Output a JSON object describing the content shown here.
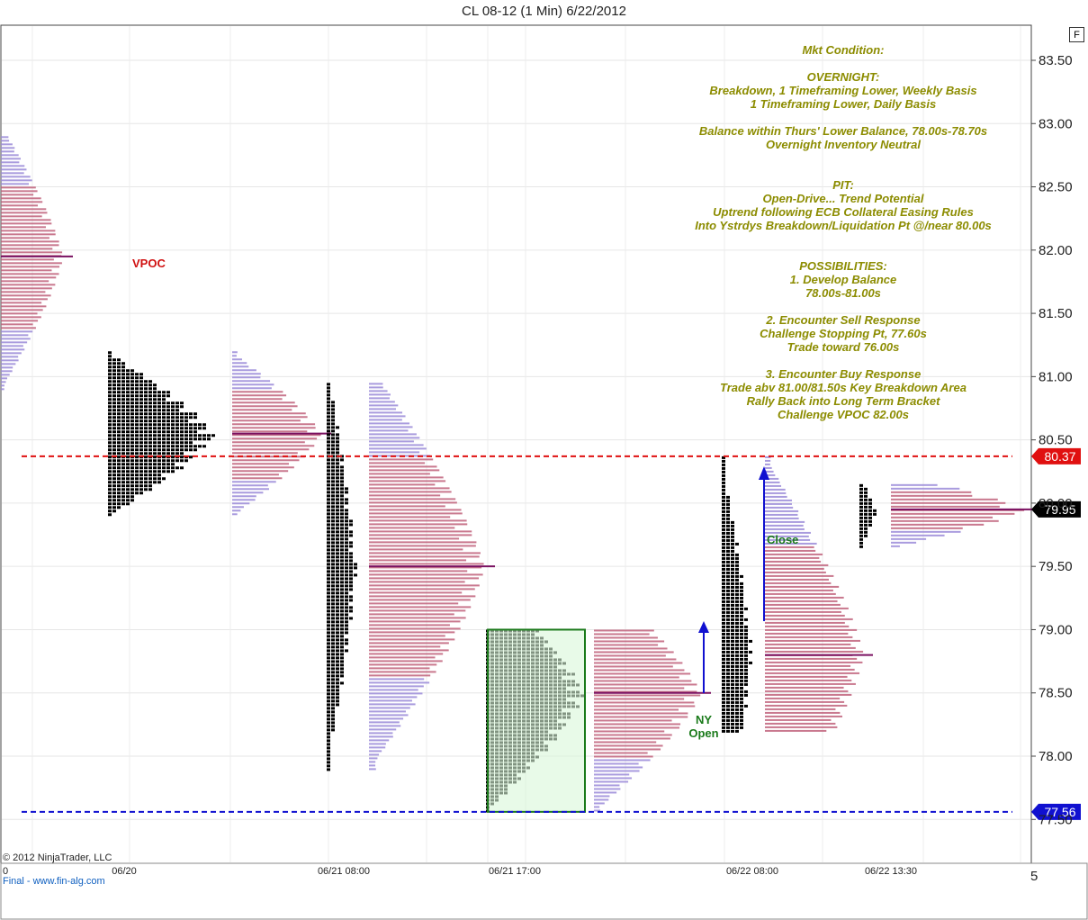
{
  "title": "CL 08-12 (1 Min)  6/22/2012",
  "toolbar": {
    "f_button_label": "F"
  },
  "copyright": "© 2012 NinjaTrader, LLC",
  "footer": {
    "zero_label": "0",
    "left_label": "Final - www.fin-alg.com",
    "right_label": "5"
  },
  "colors": {
    "black_profile": "#000000",
    "tpo_profile": "#c0607a",
    "tpo_profile_light": "#9a8ad8",
    "poc_line": "#7a1060",
    "red_line": "#e01010",
    "blue_line": "#1010d0",
    "annotation_text": "#8c8c00",
    "green_box": "#d9f7d9"
  },
  "annotations": {
    "vpoc": "VPOC",
    "close": "Close",
    "ny_open_1": "NY",
    "ny_open_2": "Open"
  },
  "market_condition_lines": [
    "Mkt Condition:",
    "",
    "OVERNIGHT:",
    "Breakdown, 1 Timeframing Lower, Weekly Basis",
    "1 Timeframing Lower, Daily Basis",
    "",
    "Balance within Thurs' Lower Balance, 78.00s-78.70s",
    "Overnight Inventory Neutral",
    "",
    "",
    "PIT:",
    "Open-Drive... Trend Potential",
    "Uptrend following ECB Collateral Easing Rules",
    "Into Ystrdys Breakdown/Liquidation Pt @/near 80.00s",
    "",
    "",
    "POSSIBILITIES:",
    "1. Develop Balance",
    "78.00s-81.00s",
    "",
    "2. Encounter Sell Response",
    "Challenge Stopping Pt, 77.60s",
    "Trade toward 76.00s",
    "",
    "3. Encounter Buy Response",
    "Trade abv 81.00/81.50s Key Breakdown Area",
    "Rally Back into Long Term Bracket",
    "Challenge VPOC 82.00s"
  ],
  "chart_data": {
    "type": "market profile",
    "title": "CL 08-12 (1 Min)  6/22/2012",
    "y_axis": {
      "ticks": [
        "83.50",
        "83.00",
        "82.50",
        "82.00",
        "81.50",
        "81.00",
        "80.50",
        "80.00",
        "79.50",
        "79.00",
        "78.50",
        "78.00",
        "77.50"
      ],
      "tick_values": [
        83.5,
        83.0,
        82.5,
        82.0,
        81.5,
        81.0,
        80.5,
        80.0,
        79.5,
        79.0,
        78.5,
        78.0,
        77.5
      ],
      "range": [
        77.2,
        83.7
      ]
    },
    "x_axis": {
      "labels": [
        "06/20",
        "06/21 08:00",
        "06/21 17:00",
        "06/22 08:00",
        "06/22 13:30"
      ]
    },
    "price_markers": [
      {
        "label": "80.37",
        "value": 80.37,
        "color": "#e01010",
        "style": "dashed"
      },
      {
        "label": "77.56",
        "value": 77.56,
        "color": "#1010d0",
        "style": "dashed"
      },
      {
        "label": "79.95",
        "value": 79.95,
        "color": "#000000",
        "style": "last"
      }
    ],
    "profiles": [
      {
        "session": "prior (06/19-06/20)",
        "kind": "volume",
        "low": 80.9,
        "high": 82.9,
        "poc": 81.95,
        "max_width": 70
      },
      {
        "session": "06/20 overnight",
        "kind": "tpo",
        "low": 79.9,
        "high": 81.2,
        "poc": 80.55,
        "max_width": 120
      },
      {
        "session": "06/20 RTH",
        "kind": "volume",
        "low": 79.9,
        "high": 81.2,
        "poc": 80.55,
        "max_width": 100
      },
      {
        "session": "06/21 RTH",
        "kind": "tpo",
        "low": 77.9,
        "high": 80.95,
        "poc": 79.5,
        "max_width": 34
      },
      {
        "session": "06/21 RTH",
        "kind": "volume",
        "low": 77.9,
        "high": 80.95,
        "poc": 79.5,
        "max_width": 130
      },
      {
        "session": "06/21 overnight",
        "kind": "tpo",
        "low": 77.56,
        "high": 79.0,
        "poc": 78.5,
        "max_width": 110
      },
      {
        "session": "06/21 overnight",
        "kind": "volume",
        "low": 77.56,
        "high": 79.0,
        "poc": 78.5,
        "max_width": 120
      },
      {
        "session": "06/22 RTH",
        "kind": "tpo",
        "low": 78.2,
        "high": 80.37,
        "poc": 78.8,
        "max_width": 34
      },
      {
        "session": "06/22 RTH",
        "kind": "volume",
        "low": 78.2,
        "high": 80.37,
        "poc": 78.8,
        "max_width": 110
      },
      {
        "session": "06/22 13:30",
        "kind": "tpo",
        "low": 79.65,
        "high": 80.15,
        "poc": 79.95,
        "max_width": 20
      },
      {
        "session": "06/22 13:30",
        "kind": "volume",
        "low": 79.65,
        "high": 80.15,
        "poc": 79.95,
        "max_width": 150
      }
    ],
    "annotations": [
      "VPOC",
      "Close",
      "NY Open"
    ]
  }
}
